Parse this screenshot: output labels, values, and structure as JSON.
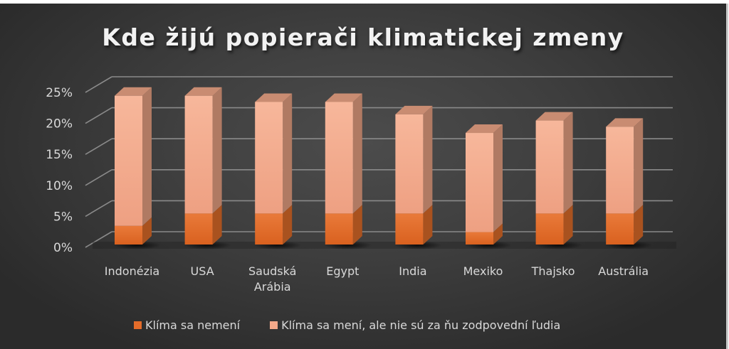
{
  "chart_data": {
    "type": "bar",
    "stacked": true,
    "style": "3d-column",
    "title": "Kde žijú popierači klimatickej zmeny",
    "xlabel": "",
    "ylabel": "",
    "ylim": [
      0,
      25
    ],
    "yticks": [
      "0%",
      "5%",
      "10%",
      "15%",
      "20%",
      "25%"
    ],
    "grid": true,
    "legend_position": "bottom",
    "categories": [
      "Indonézia",
      "USA",
      "Saudská Arábia",
      "Egypt",
      "India",
      "Mexiko",
      "Thajsko",
      "Austrália"
    ],
    "category_label_lines": [
      [
        "Indonézia"
      ],
      [
        "USA"
      ],
      [
        "Saudská",
        "Arábia"
      ],
      [
        "Egypt"
      ],
      [
        "India"
      ],
      [
        "Mexiko"
      ],
      [
        "Thajsko"
      ],
      [
        "Austrália"
      ]
    ],
    "series": [
      {
        "name": "Klíma sa nemení",
        "color": "#e46c2a",
        "values": [
          3,
          5,
          5,
          5,
          5,
          2,
          5,
          5
        ]
      },
      {
        "name": "Klíma sa mení, ale nie sú za ňu zodpovední ľudia",
        "color": "#f4a98a",
        "values": [
          21,
          19,
          18,
          18,
          16,
          16,
          15,
          14
        ]
      }
    ],
    "totals": [
      24,
      24,
      23,
      23,
      21,
      18,
      20,
      19
    ]
  },
  "colors": {
    "background": "#3f3f3f",
    "gridline": "#8a8a8a",
    "text": "#d9d9d9",
    "title": "#f2f2f2"
  }
}
